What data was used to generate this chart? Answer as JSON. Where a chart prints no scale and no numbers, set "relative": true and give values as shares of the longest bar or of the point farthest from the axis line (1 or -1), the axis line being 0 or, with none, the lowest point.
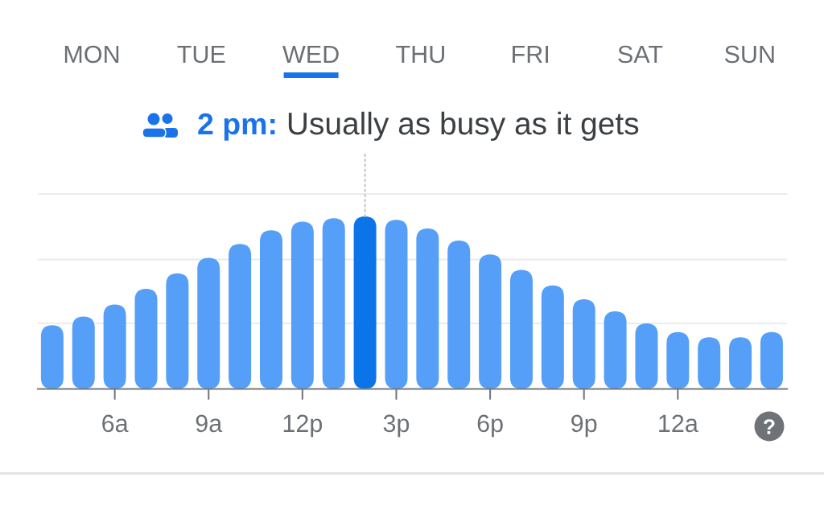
{
  "chart_data": {
    "type": "bar",
    "relative": true,
    "categories": [
      null,
      null,
      "6a",
      null,
      null,
      "9a",
      null,
      null,
      "12p",
      null,
      null,
      "3p",
      null,
      null,
      "6p",
      null,
      null,
      "9p",
      null,
      null,
      "12a",
      null,
      null,
      null
    ],
    "values": [
      0.37,
      0.42,
      0.49,
      0.58,
      0.67,
      0.76,
      0.84,
      0.92,
      0.97,
      0.99,
      1,
      0.98,
      0.93,
      0.86,
      0.78,
      0.69,
      0.6,
      0.52,
      0.45,
      0.38,
      0.33,
      0.3,
      0.3,
      0.33
    ],
    "colors": [
      "#559ff9",
      "#559ff9",
      "#559ff9",
      "#559ff9",
      "#559ff9",
      "#559ff9",
      "#559ff9",
      "#559ff9",
      "#559ff9",
      "#559ff9",
      "#0b74e9",
      "#559ff9",
      "#559ff9",
      "#559ff9",
      "#559ff9",
      "#559ff9",
      "#559ff9",
      "#559ff9",
      "#559ff9",
      "#559ff9",
      "#559ff9",
      "#559ff9",
      "#559ff9",
      "#559ff9"
    ],
    "ref_lines": [
      {
        "axis": "y",
        "value": 0.38,
        "color": "#ececec"
      },
      {
        "axis": "y",
        "value": 0.75,
        "color": "#ececec"
      },
      {
        "axis": "y",
        "value": 1.13,
        "color": "#ececec"
      }
    ],
    "annotations": [
      "MON",
      "TUE",
      "WED",
      "THU",
      "FRI",
      "SAT",
      "SUN",
      "2 pm:",
      "Usually as busy as it gets",
      "?"
    ]
  }
}
